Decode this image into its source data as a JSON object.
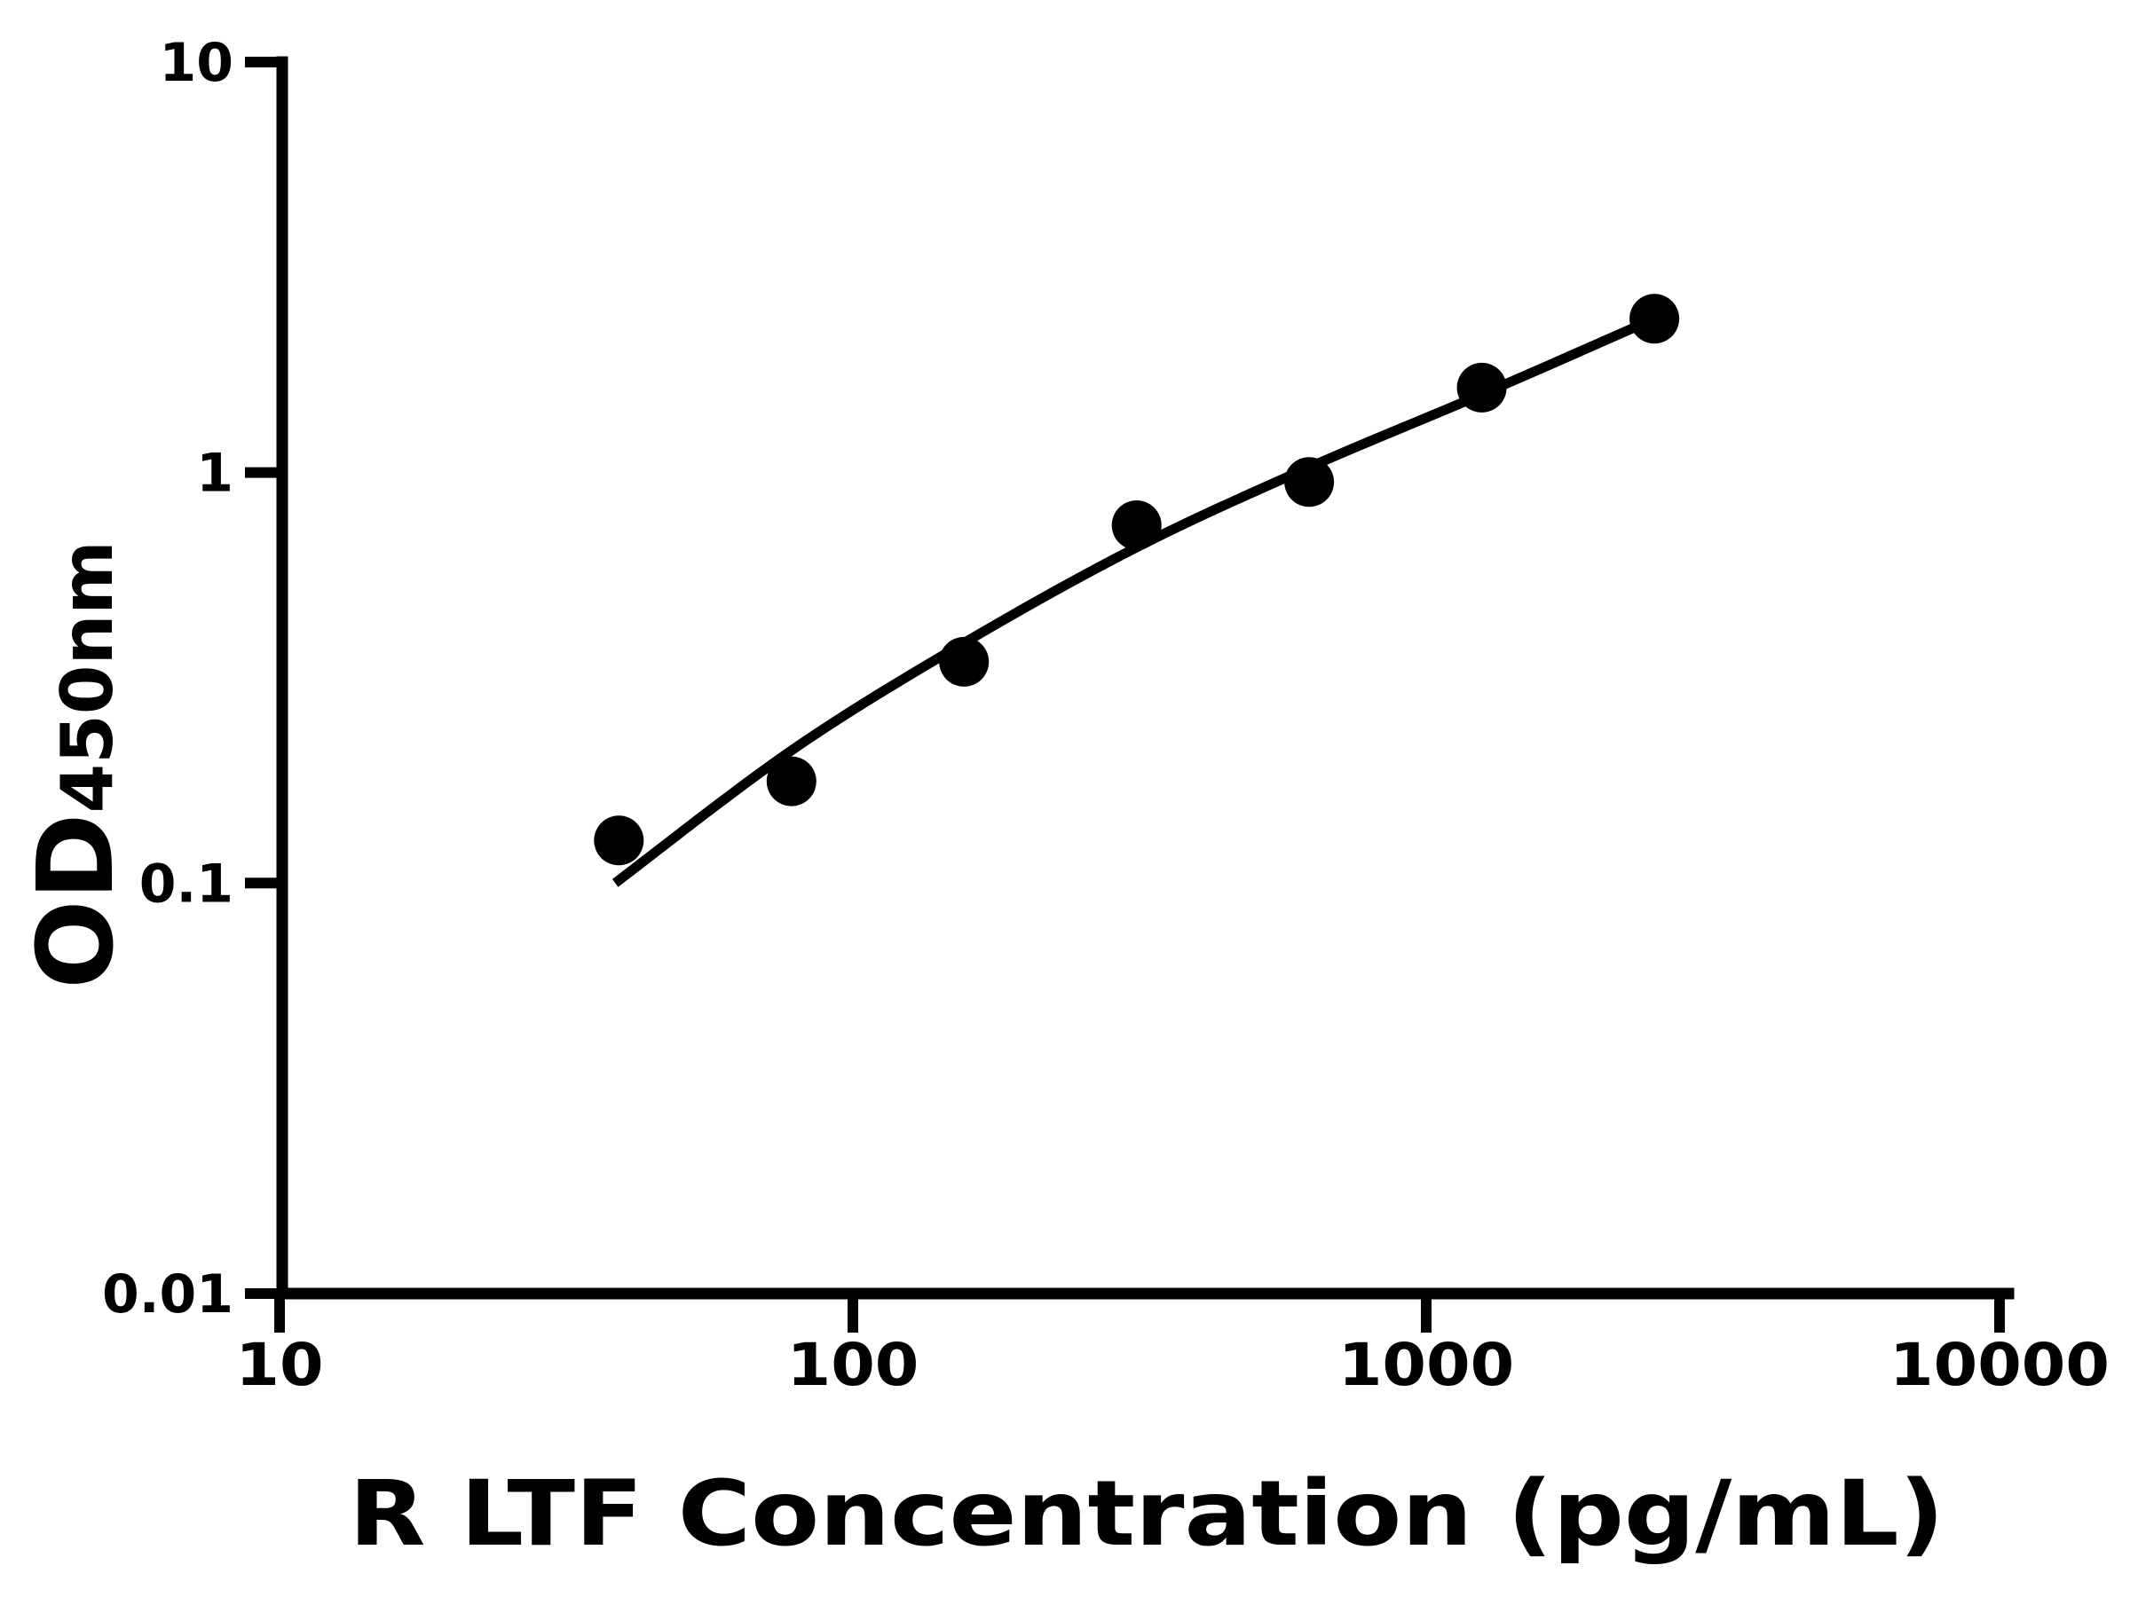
{
  "colors": {
    "foreground": "#000000",
    "background": "#ffffff"
  },
  "chart_data": {
    "type": "scatter",
    "title": "",
    "xlabel": "R LTF Concentration (pg/mL)",
    "ylabel": "OD450nm",
    "ylabel_main": "OD",
    "ylabel_sub": "450nm",
    "x_scale": "log10",
    "y_scale": "log10",
    "xlim": [
      10,
      10000
    ],
    "ylim": [
      0.01,
      10
    ],
    "grid": false,
    "legend": "none",
    "x_ticks": [
      {
        "value": 10,
        "label": "10"
      },
      {
        "value": 100,
        "label": "100"
      },
      {
        "value": 1000,
        "label": "1000"
      },
      {
        "value": 10000,
        "label": "10000"
      }
    ],
    "y_ticks": [
      {
        "value": 10,
        "label": "10"
      },
      {
        "value": 1,
        "label": "1"
      },
      {
        "value": 0.1,
        "label": "0.1"
      },
      {
        "value": 0.01,
        "label": "0.01"
      }
    ],
    "series": [
      {
        "name": "standard-points",
        "marker": "circle",
        "color": "#000000",
        "points": [
          {
            "x": 39.06,
            "y": 0.127
          },
          {
            "x": 78.13,
            "y": 0.177
          },
          {
            "x": 156.25,
            "y": 0.346
          },
          {
            "x": 312.5,
            "y": 0.744
          },
          {
            "x": 625,
            "y": 0.948
          },
          {
            "x": 1250,
            "y": 1.61
          },
          {
            "x": 2500,
            "y": 2.37
          }
        ]
      }
    ],
    "fit_curve": {
      "name": "fitted-standard-curve",
      "color": "#000000",
      "points": [
        {
          "x": 38.5,
          "y": 0.1
        },
        {
          "x": 78,
          "y": 0.21
        },
        {
          "x": 156,
          "y": 0.384
        },
        {
          "x": 312.5,
          "y": 0.657
        },
        {
          "x": 625,
          "y": 1.03
        },
        {
          "x": 1250,
          "y": 1.55
        },
        {
          "x": 2500,
          "y": 2.37
        }
      ]
    }
  }
}
